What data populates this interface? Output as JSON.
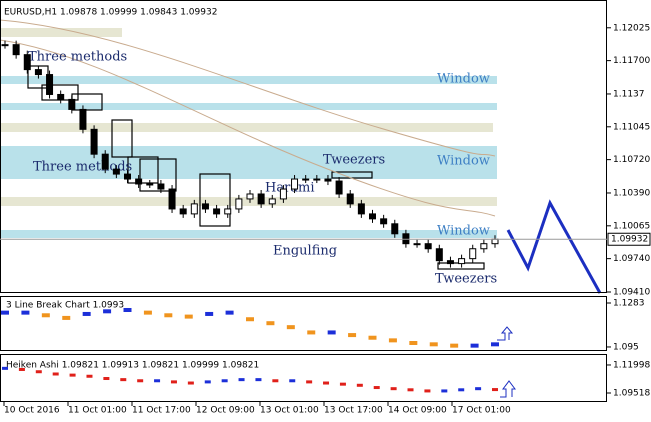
{
  "chart_data": [
    {
      "type": "candlestick",
      "title": "EURUSD,H1 1.09878 1.09999 1.09843 1.09932",
      "values": [
        1.11858,
        1.11759,
        1.11611,
        1.11562,
        1.11365,
        1.11316,
        1.11217,
        1.1102,
        1.10774,
        1.10626,
        1.10577,
        1.10528,
        1.10479,
        1.10479,
        1.10429,
        1.10232,
        1.10183,
        1.10282,
        1.10232,
        1.10183,
        1.10232,
        1.10331,
        1.1038,
        1.10282,
        1.10331,
        1.10429,
        1.10528,
        1.10528,
        1.10528,
        1.10508,
        1.1038,
        1.10282,
        1.10183,
        1.10134,
        1.10085,
        1.09986,
        1.09888,
        1.09888,
        1.09838,
        1.0972,
        1.09691,
        1.0974,
        1.09838,
        1.09888,
        1.09932
      ],
      "ylim": [
        1.094,
        1.123
      ],
      "yticks": [
        1.12025,
        {
          "value": 1.117,
          "label": "1.11700"
        },
        1.1137,
        1.11045,
        {
          "value": 1.1072,
          "label": "1.10720"
        },
        {
          "value": 1.1039,
          "label": "1.10390"
        },
        1.10065,
        {
          "value": 1.0974,
          "label": "1.09740"
        },
        {
          "value": 1.0941,
          "label": "1.09410"
        }
      ],
      "current_price": 1.09932,
      "annotations": [
        "Three methods",
        "Three methods",
        "Window",
        "Window",
        "Window",
        "Tweezers",
        "Harami",
        "Engulfing",
        "Tweezers"
      ],
      "xticks": [
        "10 Oct 2016",
        "11 Oct 01:00",
        "11 Oct 17:00",
        "12 Oct 09:00",
        "13 Oct 01:00",
        "13 Oct 17:00",
        "14 Oct 09:00",
        "17 Oct 01:00"
      ]
    },
    {
      "type": "line-break",
      "title": "3 Line Break Chart 1.0993",
      "values": [
        1.121,
        1.121,
        1.119,
        1.117,
        1.12,
        1.122,
        1.123,
        1.121,
        1.119,
        1.118,
        1.12,
        1.121,
        1.116,
        1.113,
        1.11,
        1.106,
        1.106,
        1.104,
        1.102,
        1.1,
        1.098,
        1.097,
        1.096,
        1.096,
        1.097
      ],
      "ylim": [
        1.0927,
        1.1336
      ],
      "yticks": [
        1.1283,
        1.095
      ]
    },
    {
      "type": "heiken-ashi",
      "title": "Heiken Ashi 1.09821 1.09913 1.09821 1.09999 1.09821",
      "values": [
        1.117,
        1.116,
        1.114,
        1.112,
        1.111,
        1.11,
        1.108,
        1.107,
        1.106,
        1.106,
        1.105,
        1.104,
        1.105,
        1.106,
        1.107,
        1.107,
        1.106,
        1.106,
        1.105,
        1.104,
        1.103,
        1.102,
        1.1,
        1.099,
        1.098,
        1.097,
        1.097,
        1.098,
        1.099,
        1.0982
      ],
      "ylim": [
        1.0872,
        1.1297
      ],
      "yticks": [
        1.11998,
        1.09518
      ]
    }
  ]
}
